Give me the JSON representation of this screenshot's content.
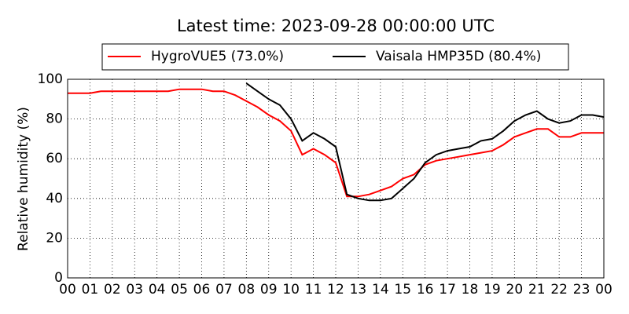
{
  "chart_data": {
    "type": "line",
    "title": "Latest time: 2023-09-28 00:00:00 UTC",
    "y_label": "Relative humidity (%)",
    "x": [
      0,
      0.5,
      1,
      1.5,
      2,
      2.5,
      3,
      3.5,
      4,
      4.5,
      5,
      5.5,
      6,
      6.5,
      7,
      7.5,
      8,
      8.5,
      9,
      9.5,
      10,
      10.5,
      11,
      11.5,
      12,
      12.5,
      13,
      13.5,
      14,
      14.5,
      15,
      15.5,
      16,
      16.5,
      17,
      17.5,
      18,
      18.5,
      19,
      19.5,
      20,
      20.5,
      21,
      21.5,
      22,
      22.5,
      23,
      23.5,
      24
    ],
    "series": [
      {
        "name": "HygroVUE5 (73.0%)",
        "color": "#ff0000",
        "values": [
          93,
          93,
          93,
          94,
          94,
          94,
          94,
          94,
          94,
          94,
          95,
          95,
          95,
          94,
          94,
          92,
          89,
          86,
          82,
          79,
          74,
          62,
          65,
          62,
          58,
          41,
          41,
          42,
          44,
          46,
          50,
          52,
          57,
          59,
          60,
          61,
          62,
          63,
          64,
          67,
          71,
          73,
          75,
          75,
          71,
          71,
          73,
          73,
          73
        ]
      },
      {
        "name": "Vaisala HMP35D (80.4%)",
        "color": "#000000",
        "values": [
          null,
          null,
          null,
          null,
          null,
          null,
          null,
          null,
          null,
          null,
          null,
          null,
          null,
          null,
          null,
          null,
          98,
          94,
          90,
          87,
          80,
          69,
          73,
          70,
          66,
          42,
          40,
          39,
          39,
          40,
          45,
          50,
          58,
          62,
          64,
          65,
          66,
          69,
          70,
          74,
          79,
          82,
          84,
          80,
          78,
          79,
          82,
          82,
          81
        ]
      }
    ],
    "xlim": [
      0,
      24
    ],
    "xticks": [
      {
        "value": 0,
        "label": "00"
      },
      {
        "value": 1,
        "label": "01"
      },
      {
        "value": 2,
        "label": "02"
      },
      {
        "value": 3,
        "label": "03"
      },
      {
        "value": 4,
        "label": "04"
      },
      {
        "value": 5,
        "label": "05"
      },
      {
        "value": 6,
        "label": "06"
      },
      {
        "value": 7,
        "label": "07"
      },
      {
        "value": 8,
        "label": "08"
      },
      {
        "value": 9,
        "label": "09"
      },
      {
        "value": 10,
        "label": "10"
      },
      {
        "value": 11,
        "label": "11"
      },
      {
        "value": 12,
        "label": "12"
      },
      {
        "value": 13,
        "label": "13"
      },
      {
        "value": 14,
        "label": "14"
      },
      {
        "value": 15,
        "label": "15"
      },
      {
        "value": 16,
        "label": "16"
      },
      {
        "value": 17,
        "label": "17"
      },
      {
        "value": 18,
        "label": "18"
      },
      {
        "value": 19,
        "label": "19"
      },
      {
        "value": 20,
        "label": "20"
      },
      {
        "value": 21,
        "label": "21"
      },
      {
        "value": 22,
        "label": "22"
      },
      {
        "value": 23,
        "label": "23"
      },
      {
        "value": 24,
        "label": "00"
      }
    ],
    "ylim": [
      0,
      100
    ],
    "yticks": [
      0,
      20,
      40,
      60,
      80,
      100
    ],
    "grid": true,
    "legend": "top"
  }
}
